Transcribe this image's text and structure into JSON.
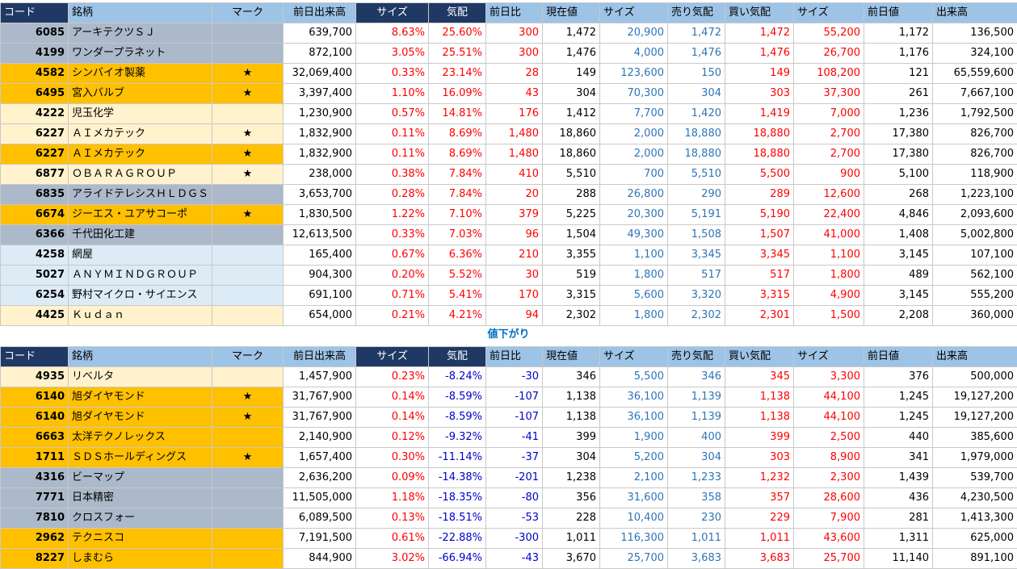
{
  "header": {
    "code": "コード",
    "name": "銘柄",
    "mark": "マーク",
    "prev_volume": "前日出来高",
    "size1": "サイズ",
    "change_pct": "気配",
    "prev_diff": "前日比",
    "current": "現在値",
    "size2": "サイズ",
    "ask": "売り気配",
    "bid": "買い気配",
    "size3": "サイズ",
    "prev_price": "前日値",
    "volume": "出来高"
  },
  "section_label": "値下がり",
  "colors": {
    "gray": "#acb9ca",
    "orange": "#ffc000",
    "cream": "#fff2cc",
    "light_blue": "#ddebf7",
    "header": "#9dc3e6",
    "header_dark": "#1f3864",
    "red": "#ff0000",
    "blue": "#2e75b6"
  },
  "up_rows": [
    {
      "bg": "gray",
      "code": "6085",
      "name": "アーキテクツＳＪ",
      "mark": "",
      "prev_volume": "639,700",
      "size1": "8.63%",
      "change_pct": "25.60%",
      "prev_diff": "300",
      "current": "1,472",
      "size2": "20,900",
      "ask": "1,472",
      "bid": "1,472",
      "size3": "55,200",
      "prev_price": "1,172",
      "volume": "136,500"
    },
    {
      "bg": "gray",
      "code": "4199",
      "name": "ワンダープラネット",
      "mark": "",
      "prev_volume": "872,100",
      "size1": "3.05%",
      "change_pct": "25.51%",
      "prev_diff": "300",
      "current": "1,476",
      "size2": "4,000",
      "ask": "1,476",
      "bid": "1,476",
      "size3": "26,700",
      "prev_price": "1,176",
      "volume": "324,100"
    },
    {
      "bg": "orange",
      "code": "4582",
      "name": "シンバイオ製薬",
      "mark": "★",
      "prev_volume": "32,069,400",
      "size1": "0.33%",
      "change_pct": "23.14%",
      "prev_diff": "28",
      "current": "149",
      "size2": "123,600",
      "ask": "150",
      "bid": "149",
      "size3": "108,200",
      "prev_price": "121",
      "volume": "65,559,600"
    },
    {
      "bg": "orange",
      "code": "6495",
      "name": "宮入バルブ",
      "mark": "★",
      "prev_volume": "3,397,400",
      "size1": "1.10%",
      "change_pct": "16.09%",
      "prev_diff": "43",
      "current": "304",
      "size2": "70,300",
      "ask": "304",
      "bid": "303",
      "size3": "37,300",
      "prev_price": "261",
      "volume": "7,667,100"
    },
    {
      "bg": "cream",
      "code": "4222",
      "name": "児玉化学",
      "mark": "",
      "prev_volume": "1,230,900",
      "size1": "0.57%",
      "change_pct": "14.81%",
      "prev_diff": "176",
      "current": "1,412",
      "size2": "7,700",
      "ask": "1,420",
      "bid": "1,419",
      "size3": "7,000",
      "prev_price": "1,236",
      "volume": "1,792,500"
    },
    {
      "bg": "cream",
      "code": "6227",
      "name": "ＡＩメカテック",
      "mark": "★",
      "prev_volume": "1,832,900",
      "size1": "0.11%",
      "change_pct": "8.69%",
      "prev_diff": "1,480",
      "current": "18,860",
      "size2": "2,000",
      "ask": "18,880",
      "bid": "18,880",
      "size3": "2,700",
      "prev_price": "17,380",
      "volume": "826,700"
    },
    {
      "bg": "orange",
      "code": "6227",
      "name": "ＡＩメカテック",
      "mark": "★",
      "prev_volume": "1,832,900",
      "size1": "0.11%",
      "change_pct": "8.69%",
      "prev_diff": "1,480",
      "current": "18,860",
      "size2": "2,000",
      "ask": "18,880",
      "bid": "18,880",
      "size3": "2,700",
      "prev_price": "17,380",
      "volume": "826,700"
    },
    {
      "bg": "cream",
      "code": "6877",
      "name": "ＯＢＡＲＡＧＲＯＵＰ",
      "mark": "★",
      "prev_volume": "238,000",
      "size1": "0.38%",
      "change_pct": "7.84%",
      "prev_diff": "410",
      "current": "5,510",
      "size2": "700",
      "ask": "5,510",
      "bid": "5,500",
      "size3": "900",
      "prev_price": "5,100",
      "volume": "118,900"
    },
    {
      "bg": "gray",
      "code": "6835",
      "name": "アライドテレシスＨＬＤＧＳ",
      "mark": "",
      "prev_volume": "3,653,700",
      "size1": "0.28%",
      "change_pct": "7.84%",
      "prev_diff": "20",
      "current": "288",
      "size2": "26,800",
      "ask": "290",
      "bid": "289",
      "size3": "12,600",
      "prev_price": "268",
      "volume": "1,223,100"
    },
    {
      "bg": "orange",
      "code": "6674",
      "name": "ジーエス・ユアサコーポ",
      "mark": "★",
      "prev_volume": "1,830,500",
      "size1": "1.22%",
      "change_pct": "7.10%",
      "prev_diff": "379",
      "current": "5,225",
      "size2": "20,300",
      "ask": "5,191",
      "bid": "5,190",
      "size3": "22,400",
      "prev_price": "4,846",
      "volume": "2,093,600"
    },
    {
      "bg": "gray",
      "code": "6366",
      "name": "千代田化工建",
      "mark": "",
      "prev_volume": "12,613,500",
      "size1": "0.33%",
      "change_pct": "7.03%",
      "prev_diff": "96",
      "current": "1,504",
      "size2": "49,300",
      "ask": "1,508",
      "bid": "1,507",
      "size3": "41,000",
      "prev_price": "1,408",
      "volume": "5,002,800"
    },
    {
      "bg": "lblue",
      "code": "4258",
      "name": "網屋",
      "mark": "",
      "prev_volume": "165,400",
      "size1": "0.67%",
      "change_pct": "6.36%",
      "prev_diff": "210",
      "current": "3,355",
      "size2": "1,100",
      "ask": "3,345",
      "bid": "3,345",
      "size3": "1,100",
      "prev_price": "3,145",
      "volume": "107,100"
    },
    {
      "bg": "lblue",
      "code": "5027",
      "name": "ＡＮＹＭＩＮＤＧＲＯＵＰ",
      "mark": "",
      "prev_volume": "904,300",
      "size1": "0.20%",
      "change_pct": "5.52%",
      "prev_diff": "30",
      "current": "519",
      "size2": "1,800",
      "ask": "517",
      "bid": "517",
      "size3": "1,800",
      "prev_price": "489",
      "volume": "562,100"
    },
    {
      "bg": "lblue",
      "code": "6254",
      "name": "野村マイクロ・サイエンス",
      "mark": "",
      "prev_volume": "691,100",
      "size1": "0.71%",
      "change_pct": "5.41%",
      "prev_diff": "170",
      "current": "3,315",
      "size2": "5,600",
      "ask": "3,320",
      "bid": "3,315",
      "size3": "4,900",
      "prev_price": "3,145",
      "volume": "555,200"
    },
    {
      "bg": "cream",
      "code": "4425",
      "name": "Ｋｕｄａｎ",
      "mark": "",
      "prev_volume": "654,000",
      "size1": "0.21%",
      "change_pct": "4.21%",
      "prev_diff": "94",
      "current": "2,302",
      "size2": "1,800",
      "ask": "2,302",
      "bid": "2,301",
      "size3": "1,500",
      "prev_price": "2,208",
      "volume": "360,000"
    }
  ],
  "down_rows": [
    {
      "bg": "cream",
      "code": "4935",
      "name": "リベルタ",
      "mark": "",
      "prev_volume": "1,457,900",
      "size1": "0.23%",
      "change_pct": "-8.24%",
      "prev_diff": "-30",
      "current": "346",
      "size2": "5,500",
      "ask": "346",
      "bid": "345",
      "size3": "3,300",
      "prev_price": "376",
      "volume": "500,000"
    },
    {
      "bg": "orange",
      "code": "6140",
      "name": "旭ダイヤモンド",
      "mark": "★",
      "prev_volume": "31,767,900",
      "size1": "0.14%",
      "change_pct": "-8.59%",
      "prev_diff": "-107",
      "current": "1,138",
      "size2": "36,100",
      "ask": "1,139",
      "bid": "1,138",
      "size3": "44,100",
      "prev_price": "1,245",
      "volume": "19,127,200"
    },
    {
      "bg": "orange",
      "code": "6140",
      "name": "旭ダイヤモンド",
      "mark": "★",
      "prev_volume": "31,767,900",
      "size1": "0.14%",
      "change_pct": "-8.59%",
      "prev_diff": "-107",
      "current": "1,138",
      "size2": "36,100",
      "ask": "1,139",
      "bid": "1,138",
      "size3": "44,100",
      "prev_price": "1,245",
      "volume": "19,127,200"
    },
    {
      "bg": "orange",
      "code": "6663",
      "name": "太洋テクノレックス",
      "mark": "",
      "prev_volume": "2,140,900",
      "size1": "0.12%",
      "change_pct": "-9.32%",
      "prev_diff": "-41",
      "current": "399",
      "size2": "1,900",
      "ask": "400",
      "bid": "399",
      "size3": "2,500",
      "prev_price": "440",
      "volume": "385,600"
    },
    {
      "bg": "orange",
      "code": "1711",
      "name": "ＳＤＳホールディングス",
      "mark": "★",
      "prev_volume": "1,657,400",
      "size1": "0.30%",
      "change_pct": "-11.14%",
      "prev_diff": "-37",
      "current": "304",
      "size2": "5,200",
      "ask": "304",
      "bid": "303",
      "size3": "8,900",
      "prev_price": "341",
      "volume": "1,979,000"
    },
    {
      "bg": "gray",
      "code": "4316",
      "name": "ビーマップ",
      "mark": "",
      "prev_volume": "2,636,200",
      "size1": "0.09%",
      "change_pct": "-14.38%",
      "prev_diff": "-201",
      "current": "1,238",
      "size2": "2,100",
      "ask": "1,233",
      "bid": "1,232",
      "size3": "2,300",
      "prev_price": "1,439",
      "volume": "539,700"
    },
    {
      "bg": "gray",
      "code": "7771",
      "name": "日本精密",
      "mark": "",
      "prev_volume": "11,505,000",
      "size1": "1.18%",
      "change_pct": "-18.35%",
      "prev_diff": "-80",
      "current": "356",
      "size2": "31,600",
      "ask": "358",
      "bid": "357",
      "size3": "28,600",
      "prev_price": "436",
      "volume": "4,230,500"
    },
    {
      "bg": "gray",
      "code": "7810",
      "name": "クロスフォー",
      "mark": "",
      "prev_volume": "6,089,500",
      "size1": "0.13%",
      "change_pct": "-18.51%",
      "prev_diff": "-53",
      "current": "228",
      "size2": "10,400",
      "ask": "230",
      "bid": "229",
      "size3": "7,900",
      "prev_price": "281",
      "volume": "1,413,300"
    },
    {
      "bg": "orange",
      "code": "2962",
      "name": "テクニスコ",
      "mark": "",
      "prev_volume": "7,191,500",
      "size1": "0.61%",
      "change_pct": "-22.88%",
      "prev_diff": "-300",
      "current": "1,011",
      "size2": "116,300",
      "ask": "1,011",
      "bid": "1,011",
      "size3": "43,600",
      "prev_price": "1,311",
      "volume": "625,000"
    },
    {
      "bg": "orange",
      "code": "8227",
      "name": "しまむら",
      "mark": "",
      "prev_volume": "844,900",
      "size1": "3.02%",
      "change_pct": "-66.94%",
      "prev_diff": "-43",
      "current": "3,670",
      "size2": "25,700",
      "ask": "3,683",
      "bid": "3,683",
      "size3": "25,700",
      "prev_price": "11,140",
      "volume": "891,100"
    }
  ]
}
